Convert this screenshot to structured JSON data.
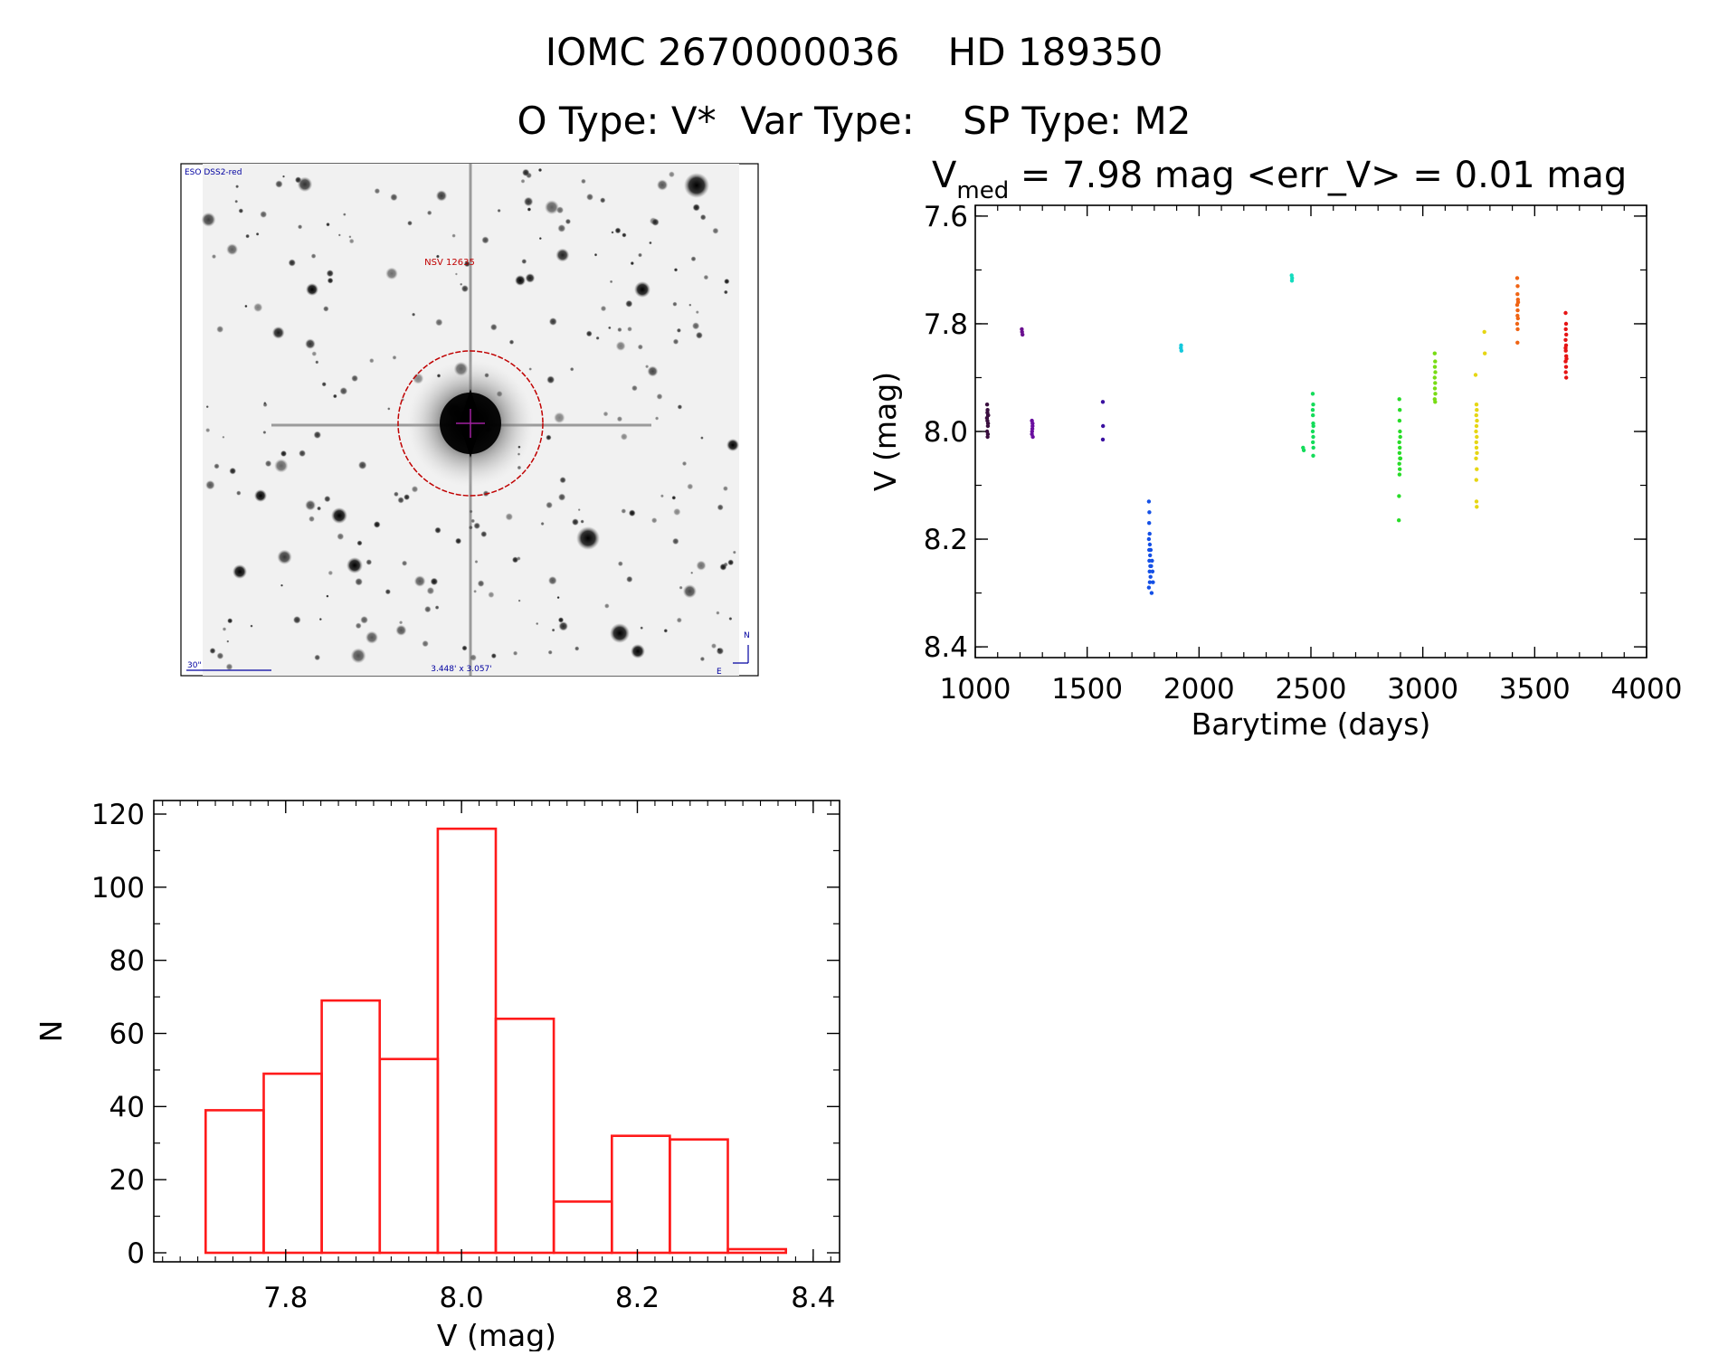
{
  "header": {
    "title_line1": "IOMC 2670000036    HD 189350",
    "title_line2": "O Type: V*  Var Type:    SP Type: M2"
  },
  "colors": {
    "histogram": "#ff1a1a",
    "axes": "#000000",
    "finder_annotation": "#c00000",
    "finder_label": "#0000a0"
  },
  "finder": {
    "survey_label": "ESO DSS2-red",
    "object_label": "NSV 12635",
    "scale_label": "30\"",
    "fov_label": "3.448' x 3.057'",
    "north_label": "N",
    "east_label": "E"
  },
  "chart_data": [
    {
      "type": "scatter",
      "title_parts": {
        "v": "V",
        "sub": "med",
        "rest": " = 7.98 mag <err_V> = 0.01 mag"
      },
      "xlabel": "Barytime (days)",
      "ylabel": "V (mag)",
      "xlim": [
        1000,
        4000
      ],
      "ylim": [
        8.42,
        7.58
      ],
      "y_inverted": true,
      "xticks": [
        1000,
        1500,
        2000,
        2500,
        3000,
        3500,
        4000
      ],
      "xtick_labels": [
        "1000",
        "1500",
        "2000",
        "2500",
        "3000",
        "3500",
        "4000"
      ],
      "yticks": [
        7.6,
        7.8,
        8.0,
        8.2,
        8.4
      ],
      "ytick_labels": [
        "7.6",
        "7.8",
        "8.0",
        "8.2",
        "8.4"
      ],
      "groups": [
        {
          "x": 1055,
          "points": [
            [
              1053,
              7.95
            ],
            [
              1055,
              7.96
            ],
            [
              1057,
              7.97
            ],
            [
              1054,
              7.98
            ],
            [
              1056,
              7.99
            ],
            [
              1053,
              8.0
            ],
            [
              1058,
              7.97
            ],
            [
              1055,
              8.01
            ],
            [
              1057,
              7.985
            ],
            [
              1054,
              7.965
            ],
            [
              1056,
              8.005
            ],
            [
              1052,
              7.975
            ]
          ],
          "color": "#3a0f3f"
        },
        {
          "x": 1210,
          "points": [
            [
              1208,
              7.81
            ],
            [
              1211,
              7.82
            ],
            [
              1209,
              7.815
            ]
          ],
          "color": "#6a0f8f"
        },
        {
          "x": 1255,
          "points": [
            [
              1253,
              7.98
            ],
            [
              1256,
              7.99
            ],
            [
              1254,
              8.0
            ],
            [
              1257,
              8.01
            ],
            [
              1255,
              7.995
            ],
            [
              1253,
              8.005
            ],
            [
              1256,
              7.985
            ]
          ],
          "color": "#6a0f9f"
        },
        {
          "x": 1570,
          "points": [
            [
              1570,
              7.945
            ],
            [
              1571,
              7.99
            ],
            [
              1570,
              8.015
            ]
          ],
          "color": "#3a10a0"
        },
        {
          "x": 1780,
          "points": [
            [
              1776,
              8.13
            ],
            [
              1778,
              8.15
            ],
            [
              1777,
              8.17
            ],
            [
              1779,
              8.19
            ],
            [
              1776,
              8.2
            ],
            [
              1780,
              8.21
            ],
            [
              1777,
              8.22
            ],
            [
              1781,
              8.23
            ],
            [
              1778,
              8.24
            ],
            [
              1782,
              8.25
            ],
            [
              1779,
              8.26
            ],
            [
              1783,
              8.27
            ],
            [
              1780,
              8.28
            ],
            [
              1776,
              8.29
            ],
            [
              1790,
              8.24
            ],
            [
              1792,
              8.26
            ],
            [
              1794,
              8.28
            ],
            [
              1788,
              8.3
            ],
            [
              1784,
              8.22
            ],
            [
              1786,
              8.25
            ]
          ],
          "color": "#1450e6"
        },
        {
          "x": 1920,
          "points": [
            [
              1920,
              7.84
            ],
            [
              1921,
              7.85
            ],
            [
              1919,
              7.845
            ]
          ],
          "color": "#14c8dc"
        },
        {
          "x": 2415,
          "points": [
            [
              2414,
              7.71
            ],
            [
              2415,
              7.72
            ],
            [
              2416,
              7.715
            ]
          ],
          "color": "#14dcbe"
        },
        {
          "x": 2510,
          "points": [
            [
              2465,
              8.03
            ],
            [
              2468,
              8.035
            ],
            [
              2508,
              7.93
            ],
            [
              2510,
              7.95
            ],
            [
              2509,
              7.97
            ],
            [
              2511,
              7.99
            ],
            [
              2508,
              8.0
            ],
            [
              2510,
              8.01
            ],
            [
              2509,
              8.02
            ],
            [
              2511,
              8.03
            ],
            [
              2510,
              8.045
            ],
            [
              2508,
              7.96
            ],
            [
              2510,
              7.985
            ]
          ],
          "color": "#14dc5a"
        },
        {
          "x": 2900,
          "points": [
            [
              2895,
              7.94
            ],
            [
              2897,
              7.96
            ],
            [
              2896,
              7.98
            ],
            [
              2898,
              8.0
            ],
            [
              2895,
              8.02
            ],
            [
              2897,
              8.03
            ],
            [
              2896,
              8.04
            ],
            [
              2898,
              8.05
            ],
            [
              2895,
              8.06
            ],
            [
              2897,
              8.07
            ],
            [
              2896,
              8.08
            ],
            [
              2894,
              8.12
            ],
            [
              2893,
              8.165
            ],
            [
              2899,
              8.01
            ],
            [
              2900,
              8.05
            ]
          ],
          "color": "#28dc28"
        },
        {
          "x": 3055,
          "points": [
            [
              3053,
              7.855
            ],
            [
              3055,
              7.87
            ],
            [
              3054,
              7.88
            ],
            [
              3056,
              7.89
            ],
            [
              3053,
              7.9
            ],
            [
              3055,
              7.91
            ],
            [
              3054,
              7.92
            ],
            [
              3056,
              7.93
            ],
            [
              3053,
              7.94
            ],
            [
              3055,
              7.945
            ]
          ],
          "color": "#78dc14"
        },
        {
          "x": 3240,
          "points": [
            [
              3236,
              7.895
            ],
            [
              3240,
              7.95
            ],
            [
              3241,
              7.96
            ],
            [
              3239,
              7.97
            ],
            [
              3242,
              7.98
            ],
            [
              3240,
              7.99
            ],
            [
              3238,
              8.0
            ],
            [
              3241,
              8.01
            ],
            [
              3239,
              8.02
            ],
            [
              3240,
              8.03
            ],
            [
              3242,
              8.04
            ],
            [
              3238,
              8.05
            ],
            [
              3241,
              8.07
            ],
            [
              3239,
              8.09
            ],
            [
              3240,
              8.13
            ],
            [
              3241,
              8.14
            ],
            [
              3275,
              7.815
            ],
            [
              3277,
              7.855
            ]
          ],
          "color": "#e6d614"
        },
        {
          "x": 3425,
          "points": [
            [
              3422,
              7.715
            ],
            [
              3424,
              7.73
            ],
            [
              3423,
              7.745
            ],
            [
              3425,
              7.755
            ],
            [
              3422,
              7.765
            ],
            [
              3424,
              7.775
            ],
            [
              3423,
              7.785
            ],
            [
              3425,
              7.79
            ],
            [
              3422,
              7.8
            ],
            [
              3424,
              7.81
            ],
            [
              3423,
              7.835
            ],
            [
              3426,
              7.76
            ]
          ],
          "color": "#f06414"
        },
        {
          "x": 3640,
          "points": [
            [
              3638,
              7.78
            ],
            [
              3640,
              7.8
            ],
            [
              3639,
              7.81
            ],
            [
              3641,
              7.82
            ],
            [
              3638,
              7.83
            ],
            [
              3640,
              7.84
            ],
            [
              3639,
              7.85
            ],
            [
              3641,
              7.86
            ],
            [
              3638,
              7.87
            ],
            [
              3640,
              7.88
            ],
            [
              3639,
              7.89
            ],
            [
              3641,
              7.9
            ],
            [
              3638,
              7.845
            ],
            [
              3642,
              7.865
            ]
          ],
          "color": "#e61414"
        }
      ]
    },
    {
      "type": "bar",
      "subtype": "histogram",
      "xlabel": "V (mag)",
      "ylabel": "N",
      "xlim": [
        7.65,
        8.43
      ],
      "ylim": [
        0,
        120
      ],
      "xticks": [
        7.8,
        8.0,
        8.2,
        8.4
      ],
      "xtick_labels": [
        "7.8",
        "8.0",
        "8.2",
        "8.4"
      ],
      "yticks": [
        0,
        20,
        40,
        60,
        80,
        100,
        120
      ],
      "ytick_labels": [
        "0",
        "20",
        "40",
        "60",
        "80",
        "100",
        "120"
      ],
      "bin_edges": [
        7.709,
        7.775,
        7.841,
        7.907,
        7.973,
        8.039,
        8.105,
        8.171,
        8.237,
        8.303,
        8.369
      ],
      "counts": [
        39,
        49,
        69,
        53,
        116,
        64,
        14,
        32,
        31,
        1
      ]
    }
  ]
}
